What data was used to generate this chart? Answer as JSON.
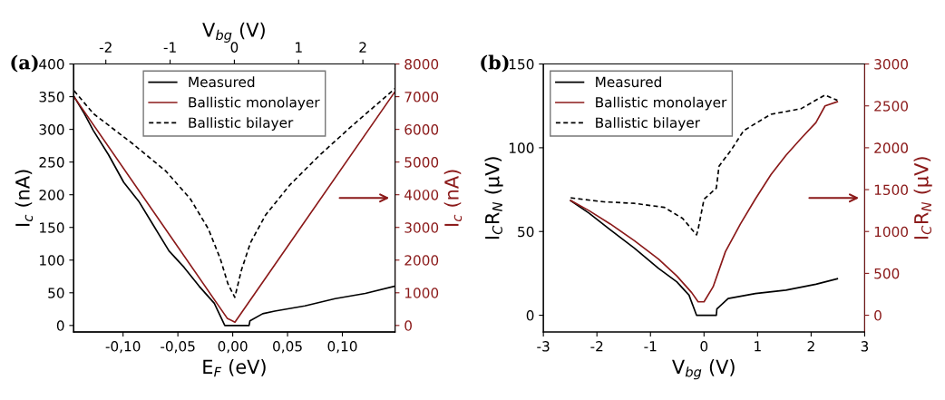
{
  "chart_data": [
    {
      "type": "line",
      "annotations": [
        "(a)"
      ],
      "xlabel": "E$_{F}$ (eV)",
      "ylabel": "I$_{c}$ (nA)",
      "y2label": "I$_{c}$ (nA)",
      "x2label": "V$_{bg}$ (V)",
      "xlim": [
        -0.145,
        0.148
      ],
      "xticks": [
        {
          "value": -0.1,
          "label": "-0,10"
        },
        {
          "value": -0.05,
          "label": "-0,05"
        },
        {
          "value": 0,
          "label": "0,00"
        },
        {
          "value": 0.05,
          "label": "0,05"
        },
        {
          "value": 0.1,
          "label": "0,10"
        }
      ],
      "x2lim": [
        -2.5,
        2.5
      ],
      "x2ticks": [
        -2,
        -1,
        0,
        1,
        2
      ],
      "ylim": [
        -10,
        400
      ],
      "yticks": [
        0,
        50,
        100,
        150,
        200,
        250,
        300,
        350,
        400
      ],
      "y2lim": [
        -200,
        8000
      ],
      "y2ticks": [
        0,
        1000,
        2000,
        3000,
        4000,
        5000,
        6000,
        7000,
        8000
      ],
      "legend": "top",
      "grid": false,
      "series": [
        {
          "name": "Measured",
          "color": "#000000",
          "line_style": "solid",
          "x": [
            -0.1446,
            -0.1353,
            -0.127,
            -0.1132,
            -0.0994,
            -0.0857,
            -0.0719,
            -0.0581,
            -0.0444,
            -0.0306,
            -0.0168,
            -0.0072,
            0.0149,
            0.0157,
            0.0273,
            0.0383,
            0.0658,
            0.0934,
            0.1209,
            0.1477
          ],
          "values": [
            350,
            324,
            298,
            261,
            219,
            190,
            152,
            114,
            89,
            60,
            34,
            0,
            0,
            7,
            18,
            22,
            30,
            41,
            49,
            60
          ]
        },
        {
          "name": "Ballistic monolayer",
          "color": "#8b1a1a",
          "line_style": "solid",
          "axis": "y2",
          "x": [
            -0.1446,
            -0.005,
            0.002,
            0.1477
          ],
          "values": [
            6990,
            220,
            100,
            7140
          ]
        },
        {
          "name": "Ballistic bilayer",
          "color": "#000000",
          "line_style": "dashed",
          "x": [
            -0.1446,
            -0.127,
            -0.0912,
            -0.0609,
            -0.0388,
            -0.0223,
            -0.0113,
            -0.0044,
            0.0019,
            0.008,
            0.0163,
            0.03,
            0.0521,
            0.0796,
            0.1072,
            0.1477
          ],
          "values": [
            359,
            324,
            278,
            236,
            194,
            148,
            102,
            64,
            43,
            85,
            127,
            169,
            215,
            261,
            303,
            362
          ]
        }
      ]
    },
    {
      "type": "line",
      "annotations": [
        "(b)"
      ],
      "xlabel": "V$_{bg}$ (V)",
      "ylabel": "I$_{C}$R$_{N}$ (μV)",
      "y2label": "I$_{C}$R$_{N}$ (μV)",
      "xlim": [
        -3,
        3
      ],
      "xticks": [
        -3,
        -2,
        -1,
        0,
        1,
        2,
        3
      ],
      "ylim": [
        -10,
        150
      ],
      "yticks": [
        0,
        50,
        100,
        150
      ],
      "y2lim": [
        -200,
        3000
      ],
      "y2ticks": [
        0,
        500,
        1000,
        1500,
        2000,
        2500,
        3000
      ],
      "legend": "top left",
      "grid": false,
      "series": [
        {
          "name": "Measured",
          "color": "#000000",
          "line_style": "solid",
          "x": [
            -2.49,
            -2.15,
            -1.75,
            -1.3,
            -0.85,
            -0.51,
            -0.28,
            -0.14,
            0.23,
            0.24,
            0.45,
            0.96,
            1.53,
            2.09,
            2.49
          ],
          "values": [
            68.4,
            61,
            51,
            40,
            28,
            20,
            12,
            0,
            0,
            3.8,
            10,
            13,
            15,
            18.5,
            21.8
          ]
        },
        {
          "name": "Ballistic monolayer",
          "color": "#8b1a1a",
          "line_style": "solid",
          "axis": "y2",
          "x": [
            -2.49,
            -2.15,
            -1.75,
            -1.3,
            -0.85,
            -0.51,
            -0.23,
            -0.11,
            0,
            0.17,
            0.4,
            0.68,
            0.96,
            1.25,
            1.53,
            1.81,
            2.09,
            2.26,
            2.49
          ],
          "values": [
            1370,
            1250,
            1090,
            890,
            670,
            470,
            270,
            160,
            160,
            340,
            760,
            1090,
            1390,
            1680,
            1910,
            2110,
            2300,
            2500,
            2550
          ]
        },
        {
          "name": "Ballistic bilayer",
          "color": "#000000",
          "line_style": "dashed",
          "x": [
            -2.49,
            -1.87,
            -1.3,
            -0.74,
            -0.4,
            -0.14,
            -0.11,
            0,
            0.23,
            0.28,
            0.51,
            0.74,
            1.25,
            1.81,
            2.26,
            2.49
          ],
          "values": [
            70.1,
            67.7,
            66.8,
            64.4,
            57.8,
            48,
            51.3,
            69.3,
            75.9,
            89,
            98.8,
            110.2,
            120,
            123.3,
            131.5,
            128.3
          ]
        }
      ]
    }
  ]
}
